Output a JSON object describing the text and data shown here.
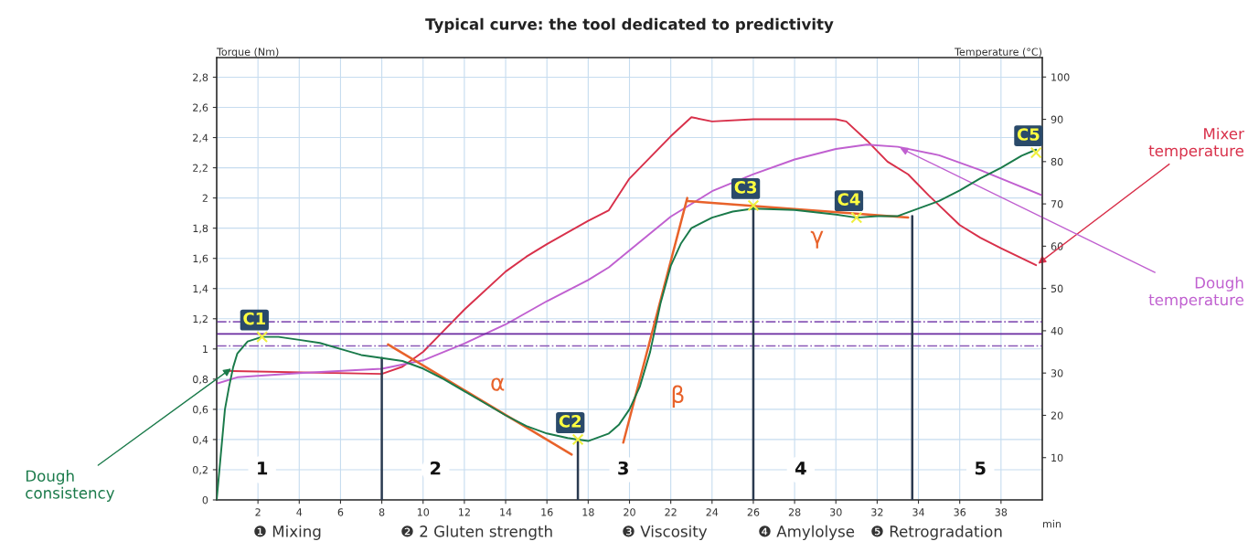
{
  "chart_data": {
    "type": "line",
    "title": "Typical curve: the tool dedicated to predictivity",
    "xlabel": "min",
    "ylabel": "Torque (Nm)",
    "y2label": "Temperature (°C)",
    "xlim": [
      0,
      40
    ],
    "ylim": [
      0,
      2.93
    ],
    "y2lim": [
      0,
      104.6
    ],
    "xticks": [
      2,
      4,
      6,
      8,
      10,
      12,
      14,
      16,
      18,
      20,
      22,
      24,
      26,
      28,
      30,
      32,
      34,
      36,
      38
    ],
    "yticks": [
      0,
      {
        "value": 0.2,
        "label": "0,2"
      },
      {
        "value": 0.4,
        "label": "0,4"
      },
      {
        "value": 0.6,
        "label": "0,6"
      },
      {
        "value": 0.8,
        "label": "0,8"
      },
      1,
      {
        "value": 1.2,
        "label": "1,2"
      },
      {
        "value": 1.4,
        "label": "1,4"
      },
      {
        "value": 1.6,
        "label": "1,6"
      },
      {
        "value": 1.8,
        "label": "1,8"
      },
      2,
      {
        "value": 2.2,
        "label": "2,2"
      },
      {
        "value": 2.4,
        "label": "2,4"
      },
      {
        "value": 2.6,
        "label": "2,6"
      },
      {
        "value": 2.8,
        "label": "2,8"
      }
    ],
    "y2ticks": [
      10,
      20,
      30,
      40,
      50,
      60,
      70,
      80,
      90,
      100
    ],
    "grid": true,
    "legend": false,
    "series": [
      {
        "name": "Dough consistency",
        "color": "#1a7a4a",
        "x": [
          0,
          0.2,
          0.4,
          0.6,
          0.8,
          1.0,
          1.5,
          2.2,
          3,
          4,
          5,
          6,
          7,
          8,
          9,
          10,
          11,
          12,
          13,
          14,
          15,
          16,
          17,
          17.5,
          18,
          19,
          19.5,
          20,
          20.5,
          21,
          21.5,
          22,
          22.5,
          23,
          24,
          25,
          26,
          28,
          30,
          31,
          32,
          33,
          34,
          35,
          36,
          37,
          38,
          39,
          39.7
        ],
        "values": [
          0,
          0.3,
          0.6,
          0.75,
          0.88,
          0.97,
          1.05,
          1.08,
          1.08,
          1.06,
          1.04,
          1.0,
          0.96,
          0.94,
          0.92,
          0.87,
          0.8,
          0.72,
          0.64,
          0.56,
          0.49,
          0.44,
          0.41,
          0.4,
          0.39,
          0.44,
          0.5,
          0.6,
          0.75,
          0.98,
          1.3,
          1.55,
          1.7,
          1.8,
          1.87,
          1.91,
          1.93,
          1.92,
          1.89,
          1.87,
          1.88,
          1.88,
          1.93,
          1.98,
          2.05,
          2.13,
          2.2,
          2.28,
          2.32
        ]
      },
      {
        "name": "Mixer temperature",
        "color": "#d8304a",
        "axis": "y2",
        "x": [
          0.5,
          8,
          9,
          10,
          11,
          12,
          14,
          15,
          16,
          18,
          19,
          20,
          22,
          23,
          24,
          26,
          28,
          30,
          30.5,
          31.5,
          32.5,
          33.5,
          34.5,
          36,
          37,
          38,
          39.7
        ],
        "values": [
          30.5,
          29.8,
          31.5,
          35,
          40,
          45,
          54,
          57.5,
          60.5,
          66,
          68.5,
          76,
          86,
          90.5,
          89.5,
          90,
          90,
          90,
          89.5,
          85,
          80,
          77,
          72,
          65,
          62,
          59.5,
          55.5
        ]
      },
      {
        "name": "Dough temperature",
        "color": "#c060d0",
        "axis": "y2",
        "x": [
          0,
          1,
          4,
          8,
          10,
          12,
          14,
          16,
          18,
          19,
          20,
          22,
          24,
          26,
          28,
          30,
          31.5,
          33,
          35,
          37,
          38,
          40
        ],
        "values": [
          27.5,
          29,
          30,
          31,
          33,
          37,
          41.5,
          47,
          52,
          55,
          59,
          67,
          73,
          77,
          80.5,
          83,
          84,
          83.5,
          81.5,
          78,
          76,
          72
        ]
      },
      {
        "type": "line",
        "color": "#e8622a",
        "x": [
          8.3,
          17.2
        ],
        "values": [
          1.03,
          0.3
        ]
      },
      {
        "type": "line",
        "color": "#e8622a",
        "x": [
          19.7,
          22.8
        ],
        "values": [
          0.38,
          2.0
        ]
      },
      {
        "type": "line",
        "color": "#e8622a",
        "x": [
          22.8,
          33.5
        ],
        "values": [
          1.98,
          1.87
        ]
      },
      {
        "type": "line",
        "color": "#2a3a50",
        "x": [
          8,
          8
        ],
        "values": [
          0,
          0.94
        ]
      },
      {
        "type": "line",
        "color": "#2a3a50",
        "x": [
          17.5,
          17.5
        ],
        "values": [
          0,
          0.4
        ]
      },
      {
        "type": "line",
        "color": "#2a3a50",
        "x": [
          26,
          26
        ],
        "values": [
          0,
          1.95
        ]
      },
      {
        "type": "line",
        "color": "#2a3a50",
        "x": [
          33.7,
          33.7
        ],
        "values": [
          0,
          1.88
        ]
      },
      {
        "type": "scatter",
        "color": "#f0f040",
        "marker": "cross",
        "x": [
          2.2,
          17.5,
          26,
          31,
          39.7
        ],
        "values": [
          1.08,
          0.4,
          1.95,
          1.87,
          2.3
        ]
      }
    ],
    "ref_lines": [
      {
        "axis": "y",
        "value": 1.1,
        "color": "#6a2aa0",
        "line_style": "solid"
      },
      {
        "axis": "y",
        "value": 1.18,
        "color": "#8a5ab8",
        "line_style": "dashed"
      },
      {
        "axis": "y",
        "value": 1.02,
        "color": "#8a5ab8",
        "line_style": "dashed"
      }
    ],
    "annotations": [
      {
        "text": "C1",
        "x": 2.2,
        "y": 1.08
      },
      {
        "text": "C2",
        "x": 17.5,
        "y": 0.4
      },
      {
        "text": "C3",
        "x": 26,
        "y": 1.95
      },
      {
        "text": "C4",
        "x": 31,
        "y": 1.87
      },
      {
        "text": "C5",
        "x": 39.7,
        "y": 2.3
      },
      "α",
      "β",
      "γ",
      {
        "text": "1",
        "x": 2.2,
        "y": 0.2
      },
      {
        "text": "2",
        "x": 10.6,
        "y": 0.2
      },
      {
        "text": "3",
        "x": 19.7,
        "y": 0.2
      },
      {
        "text": "4",
        "x": 28.3,
        "y": 0.2
      },
      {
        "text": "5",
        "x": 37,
        "y": 0.2
      },
      "❶ Mixing",
      "❷ 2 Gluten strength",
      "❸ Viscosity",
      "❹ Amylolyse",
      "❺ Retrogradation"
    ]
  }
}
